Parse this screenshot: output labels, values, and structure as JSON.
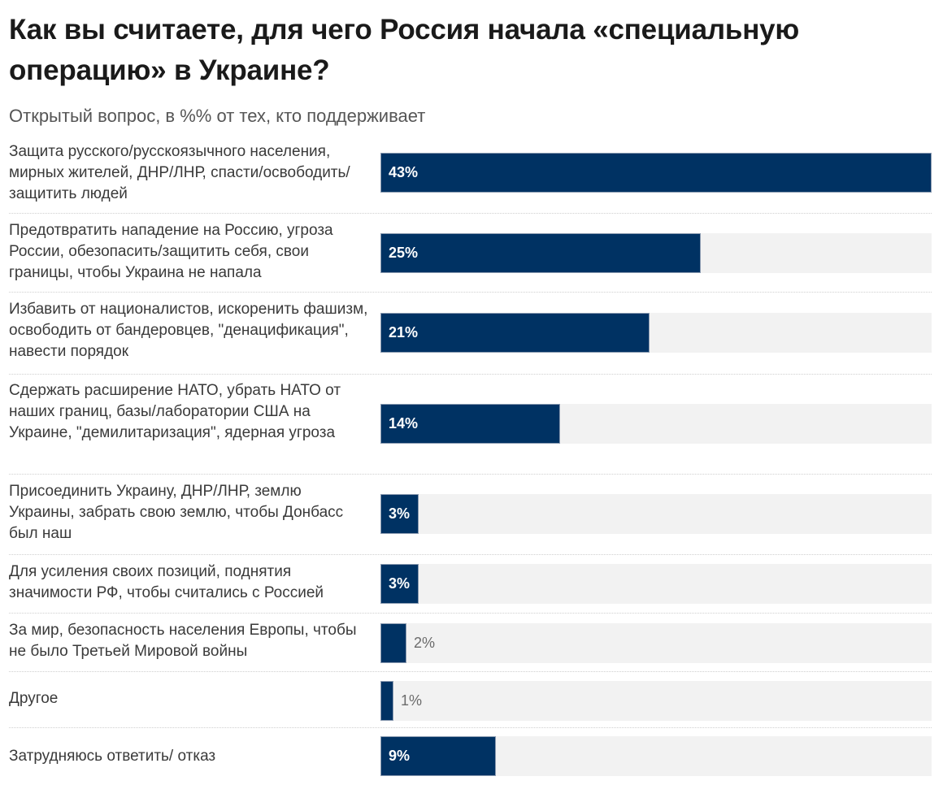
{
  "header": {
    "title": "Как вы считаете, для чего Россия начала «специальную операцию» в Украине?",
    "subtitle": "Открытый вопрос, в %% от тех, кто поддерживает"
  },
  "colors": {
    "bar": "#003263",
    "track": "#f2f2f2",
    "value_inside": "#ffffff",
    "value_outside": "#6b6b6b"
  },
  "chart_data": {
    "type": "bar",
    "orientation": "horizontal",
    "title": "Как вы считаете, для чего Россия начала «специальную операцию» в Украине?",
    "subtitle": "Открытый вопрос, в %% от тех, кто поддерживает",
    "xlabel": "",
    "ylabel": "",
    "xlim": [
      0,
      43
    ],
    "grid": false,
    "legend": "none",
    "categories": [
      "Защита русского/русскоязычного населения, мирных жителей, ДНР/ЛНР, спасти/освободить/защитить людей",
      "Предотвратить нападение на Россию, угроза России, обезопасить/защитить себя, свои границы, чтобы Украина не напала",
      "Избавить от националистов, искоренить фашизм, освободить от бандеровцев, \"денацификация\", навести порядок",
      "Сдержать расширение НАТО, убрать НАТО от наших границ, базы/лаборатории США на Украине, \"демилитаризация\", ядерная угроза",
      "Присоединить Украину, ДНР/ЛНР, землю Украины, забрать свою землю, чтобы Донбасс был наш",
      "Для усиления своих позиций, поднятия значимости РФ, чтобы считались с Россией",
      "За мир, безопасность населения Европы, чтобы не было Третьей Мировой войны",
      "Другое",
      "Затрудняюсь ответить/ отказ"
    ],
    "values": [
      43,
      25,
      21,
      14,
      3,
      3,
      2,
      1,
      9
    ],
    "value_labels": [
      "43%",
      "25%",
      "21%",
      "14%",
      "3%",
      "3%",
      "2%",
      "1%",
      "9%"
    ]
  }
}
